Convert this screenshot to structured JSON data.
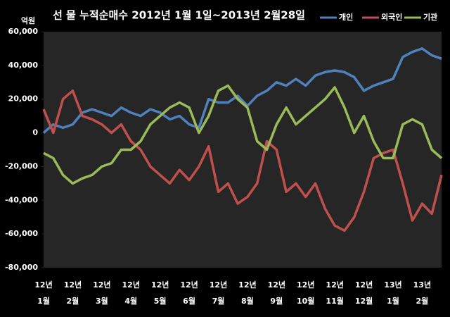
{
  "chart_data": {
    "type": "line",
    "title": "선 물 누적순매수 2012년 1월 1일~2013년 2월28일",
    "y_unit": "억원",
    "categories": [
      "1월",
      null,
      null,
      "2월",
      null,
      null,
      "3월",
      null,
      null,
      "4월",
      null,
      null,
      "5월",
      null,
      null,
      "6월",
      null,
      null,
      "7월",
      null,
      null,
      "8월",
      null,
      null,
      "9월",
      null,
      null,
      "10월",
      null,
      null,
      "11월",
      null,
      null,
      "12월",
      null,
      null,
      "1월",
      null,
      null,
      "2월",
      null,
      null
    ],
    "category_years": [
      "12년",
      null,
      null,
      "12년",
      null,
      null,
      "12년",
      null,
      null,
      "12년",
      null,
      null,
      "12년",
      null,
      null,
      "12년",
      null,
      null,
      "12년",
      null,
      null,
      "12년",
      null,
      null,
      "12년",
      null,
      null,
      "12년",
      null,
      null,
      "12년",
      null,
      null,
      "12년",
      null,
      null,
      "13년",
      null,
      null,
      "13년",
      null,
      null
    ],
    "series": [
      {
        "name": "개인",
        "color": "#4f81bd",
        "values": [
          0,
          5000,
          3000,
          5000,
          12000,
          14000,
          12000,
          10000,
          15000,
          12000,
          10000,
          14000,
          12000,
          8000,
          10000,
          5000,
          3000,
          20000,
          18000,
          18000,
          22000,
          16000,
          22000,
          25000,
          30000,
          28000,
          32000,
          28000,
          34000,
          36000,
          37000,
          36000,
          33000,
          25000,
          28000,
          30000,
          32000,
          45000,
          48000,
          50000,
          46000,
          44000
        ]
      },
      {
        "name": "외국인",
        "color": "#c0504d",
        "values": [
          14000,
          0,
          20000,
          25000,
          10000,
          8000,
          5000,
          0,
          5000,
          -5000,
          -10000,
          -20000,
          -25000,
          -30000,
          -22000,
          -28000,
          -20000,
          -8000,
          -35000,
          -30000,
          -42000,
          -38000,
          -30000,
          -5000,
          -10000,
          -35000,
          -30000,
          -38000,
          -30000,
          -45000,
          -55000,
          -58000,
          -50000,
          -35000,
          -15000,
          -12000,
          -10000,
          -30000,
          -52000,
          -42000,
          -48000,
          -25000
        ]
      },
      {
        "name": "기관",
        "color": "#9bbb59",
        "values": [
          -12000,
          -15000,
          -25000,
          -30000,
          -27000,
          -25000,
          -20000,
          -18000,
          -10000,
          -10000,
          -5000,
          5000,
          10000,
          15000,
          18000,
          15000,
          0,
          10000,
          25000,
          28000,
          20000,
          15000,
          -5000,
          -10000,
          5000,
          15000,
          5000,
          10000,
          15000,
          20000,
          27000,
          15000,
          0,
          10000,
          -5000,
          -15000,
          -15000,
          5000,
          8000,
          5000,
          -10000,
          -15000
        ]
      }
    ],
    "ylim": [
      -80000,
      60000
    ],
    "yticks": [
      {
        "value": -80000,
        "label": "-80,000"
      },
      {
        "value": -60000,
        "label": "-60,000"
      },
      {
        "value": -40000,
        "label": "-40,000"
      },
      {
        "value": -20000,
        "label": "-20,000"
      },
      0,
      {
        "value": 20000,
        "label": "20,000"
      },
      {
        "value": 40000,
        "label": "40,000"
      },
      {
        "value": 60000,
        "label": "60,000"
      }
    ],
    "grid": false,
    "legend": "top-right"
  }
}
